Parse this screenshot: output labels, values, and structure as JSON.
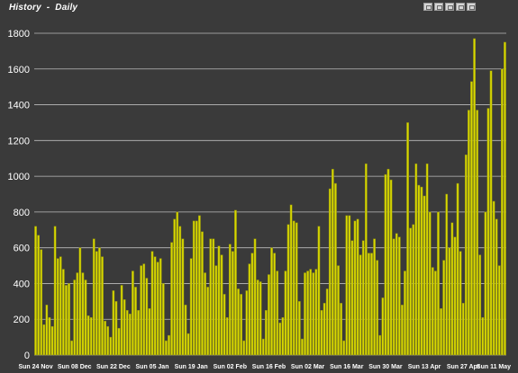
{
  "header": {
    "title": "History  -  Daily"
  },
  "toolbar": {
    "buttons": [
      {
        "icon": "chart-view-icon"
      },
      {
        "icon": "bar-chart-icon"
      },
      {
        "icon": "line-chart-icon"
      },
      {
        "icon": "table-view-icon"
      },
      {
        "icon": "export-icon"
      }
    ]
  },
  "colors": {
    "background": "#3a3a3a",
    "bar_fill": "#d8d800",
    "bar_stroke": "#8a8a10",
    "grid": "#bdbdbd",
    "text": "#ffffff"
  },
  "chart_data": {
    "type": "bar",
    "title": "History  -  Daily",
    "ylim": [
      0,
      1800
    ],
    "yticks": [
      0,
      200,
      400,
      600,
      800,
      1000,
      1200,
      1400,
      1600,
      1800
    ],
    "grid": true,
    "xticks": [
      {
        "index": 0,
        "label": "Sun 24 Nov"
      },
      {
        "index": 14,
        "label": "Sun 08 Dec"
      },
      {
        "index": 28,
        "label": "Sun 22 Dec"
      },
      {
        "index": 42,
        "label": "Sun 05 Jan"
      },
      {
        "index": 56,
        "label": "Sun 19 Jan"
      },
      {
        "index": 70,
        "label": "Sun 02 Feb"
      },
      {
        "index": 84,
        "label": "Sun 16 Feb"
      },
      {
        "index": 98,
        "label": "Sun 02 Mar"
      },
      {
        "index": 112,
        "label": "Sun 16 Mar"
      },
      {
        "index": 126,
        "label": "Sun 30 Mar"
      },
      {
        "index": 140,
        "label": "Sun 13 Apr"
      },
      {
        "index": 154,
        "label": "Sun 27 Apr"
      },
      {
        "index": 168,
        "label": "Sun 11 May"
      }
    ],
    "values": [
      720,
      670,
      590,
      170,
      280,
      210,
      160,
      720,
      540,
      550,
      480,
      390,
      400,
      80,
      420,
      460,
      600,
      460,
      420,
      220,
      210,
      650,
      580,
      600,
      550,
      190,
      160,
      100,
      360,
      300,
      150,
      390,
      310,
      250,
      230,
      470,
      380,
      250,
      500,
      510,
      430,
      260,
      580,
      550,
      520,
      540,
      400,
      80,
      110,
      630,
      760,
      800,
      720,
      650,
      280,
      120,
      540,
      750,
      750,
      780,
      690,
      460,
      380,
      650,
      650,
      500,
      610,
      560,
      340,
      210,
      620,
      580,
      810,
      370,
      340,
      80,
      360,
      510,
      570,
      650,
      420,
      410,
      90,
      250,
      450,
      600,
      570,
      470,
      180,
      210,
      470,
      730,
      840,
      750,
      740,
      300,
      90,
      460,
      470,
      480,
      460,
      480,
      720,
      250,
      290,
      370,
      930,
      1040,
      960,
      500,
      290,
      80,
      780,
      780,
      640,
      750,
      760,
      560,
      640,
      1070,
      570,
      570,
      650,
      530,
      110,
      320,
      1010,
      1040,
      980,
      650,
      680,
      660,
      280,
      470,
      1300,
      710,
      730,
      1070,
      950,
      940,
      890,
      1070,
      800,
      490,
      470,
      800,
      260,
      530,
      900,
      600,
      740,
      660,
      960,
      580,
      290,
      1120,
      1370,
      1530,
      1770,
      1370,
      560,
      210,
      800,
      1380,
      1590,
      860,
      760,
      500,
      1600,
      1750
    ]
  }
}
